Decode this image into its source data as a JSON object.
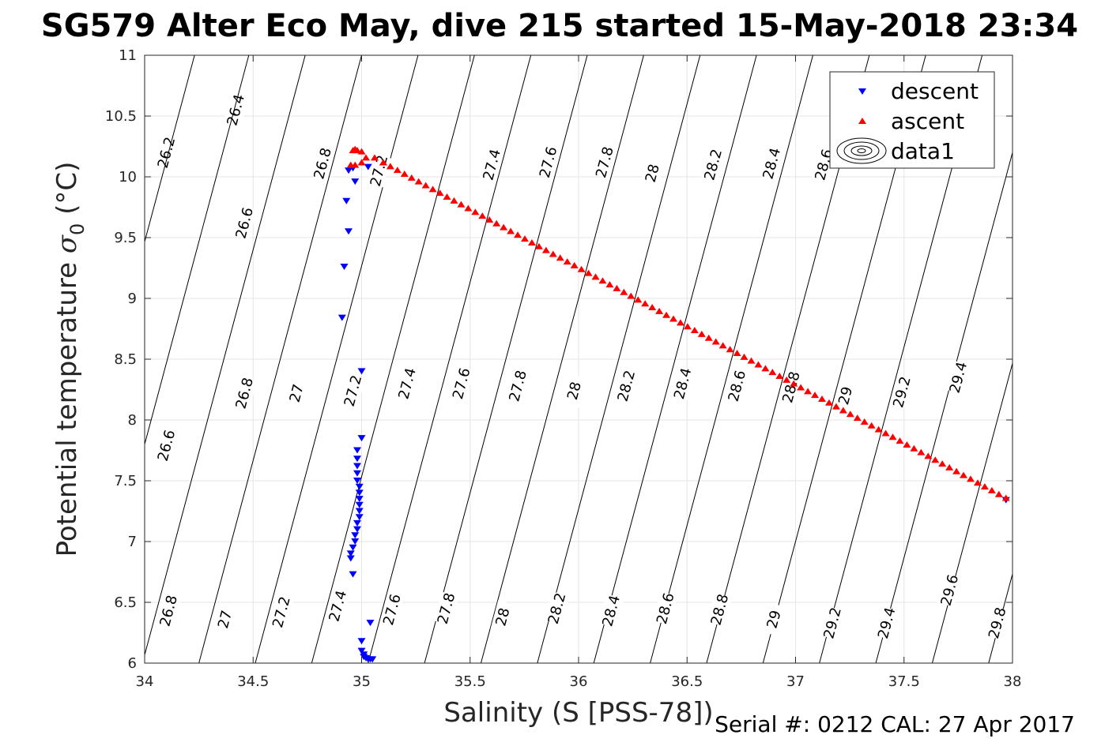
{
  "chart_data": {
    "type": "scatter",
    "title": "SG579 Alter Eco May, dive 215 started 15-May-2018 23:34",
    "xlabel": "Salinity (S [PSS-78])",
    "ylabel_main": "Potential temperature ",
    "ylabel_symbol": "σ",
    "ylabel_subscript": "0",
    "ylabel_unit": " (°C)",
    "xlim": [
      34,
      38
    ],
    "ylim": [
      6,
      11
    ],
    "xticks": [
      "34",
      "34.5",
      "35",
      "35.5",
      "36",
      "36.5",
      "37",
      "37.5",
      "38"
    ],
    "yticks": [
      "6",
      "6.5",
      "7",
      "7.5",
      "8",
      "8.5",
      "9",
      "9.5",
      "10",
      "10.5",
      "11"
    ],
    "grid": true,
    "legend_position": "top-right",
    "legend": [
      "descent",
      "ascent",
      "data1"
    ],
    "footer": "Serial #: 0212  CAL: 27 Apr 2017",
    "colors": {
      "descent": "#0000ff",
      "ascent": "#ff0000",
      "contour": "#000000",
      "grid": "#e6e6e6"
    },
    "series": [
      {
        "name": "descent",
        "marker": "triangle-down",
        "points": [
          [
            34.94,
            10.05
          ],
          [
            34.96,
            10.07
          ],
          [
            35.03,
            10.08
          ],
          [
            34.97,
            9.96
          ],
          [
            34.93,
            9.8
          ],
          [
            34.94,
            9.55
          ],
          [
            34.92,
            9.26
          ],
          [
            34.91,
            8.84
          ],
          [
            35.0,
            8.4
          ],
          [
            35.0,
            7.85
          ],
          [
            34.98,
            7.75
          ],
          [
            34.98,
            7.68
          ],
          [
            34.98,
            7.62
          ],
          [
            34.98,
            7.56
          ],
          [
            34.98,
            7.5
          ],
          [
            34.99,
            7.45
          ],
          [
            34.99,
            7.4
          ],
          [
            34.99,
            7.35
          ],
          [
            34.99,
            7.3
          ],
          [
            34.99,
            7.25
          ],
          [
            34.99,
            7.2
          ],
          [
            34.98,
            7.15
          ],
          [
            34.98,
            7.1
          ],
          [
            34.97,
            7.05
          ],
          [
            34.97,
            7.0
          ],
          [
            34.96,
            6.95
          ],
          [
            34.95,
            6.9
          ],
          [
            34.95,
            6.86
          ],
          [
            34.96,
            6.73
          ],
          [
            35.04,
            6.33
          ],
          [
            35.0,
            6.18
          ],
          [
            35.0,
            6.1
          ],
          [
            35.01,
            6.07
          ],
          [
            35.01,
            6.05
          ],
          [
            35.02,
            6.04
          ],
          [
            35.03,
            6.03
          ],
          [
            35.04,
            6.03
          ],
          [
            35.05,
            6.03
          ],
          [
            37.97,
            7.34
          ]
        ]
      },
      {
        "name": "ascent",
        "marker": "triangle-up",
        "points": [
          [
            34.95,
            10.1
          ],
          [
            34.96,
            10.22
          ],
          [
            34.97,
            10.23
          ],
          [
            34.98,
            10.22
          ],
          [
            35.0,
            10.21
          ],
          [
            34.97,
            10.1
          ],
          [
            35.0,
            10.12
          ],
          [
            35.02,
            10.16
          ],
          [
            35.06,
            10.16
          ],
          [
            35.1,
            10.12
          ]
        ],
        "line_segment": {
          "from": [
            35.1,
            10.12
          ],
          "to": [
            37.97,
            7.36
          ],
          "count": 88
        }
      }
    ],
    "contours": [
      {
        "sigma": 26.2,
        "s_at_t6": 33.22,
        "dsdt": 0.15,
        "labels": [
          {
            "s": 34.1,
            "t": 10.2
          }
        ]
      },
      {
        "sigma": 26.4,
        "s_at_t6": 33.48,
        "dsdt": 0.15,
        "labels": [
          {
            "s": 34.42,
            "t": 10.55
          }
        ]
      },
      {
        "sigma": 26.6,
        "s_at_t6": 33.73,
        "dsdt": 0.15,
        "labels": [
          {
            "s": 34.46,
            "t": 9.62
          },
          {
            "s": 34.1,
            "t": 7.79
          }
        ]
      },
      {
        "sigma": 26.8,
        "s_at_t6": 33.99,
        "dsdt": 0.15,
        "labels": [
          {
            "s": 34.11,
            "t": 6.43
          },
          {
            "s": 34.46,
            "t": 8.22
          },
          {
            "s": 34.82,
            "t": 10.11
          }
        ]
      },
      {
        "sigma": 27.0,
        "s_at_t6": 34.25,
        "dsdt": 0.15,
        "labels": [
          {
            "s": 34.37,
            "t": 6.36
          },
          {
            "s": 34.7,
            "t": 8.22
          }
        ]
      },
      {
        "sigma": 27.2,
        "s_at_t6": 34.51,
        "dsdt": 0.15,
        "labels": [
          {
            "s": 34.63,
            "t": 6.42
          },
          {
            "s": 34.96,
            "t": 8.24
          },
          {
            "s": 35.08,
            "t": 10.05
          }
        ]
      },
      {
        "sigma": 27.4,
        "s_at_t6": 34.77,
        "dsdt": 0.15,
        "labels": [
          {
            "s": 34.89,
            "t": 6.47
          },
          {
            "s": 35.21,
            "t": 8.3
          },
          {
            "s": 35.6,
            "t": 10.1
          }
        ]
      },
      {
        "sigma": 27.6,
        "s_at_t6": 35.03,
        "dsdt": 0.15,
        "labels": [
          {
            "s": 35.14,
            "t": 6.44
          },
          {
            "s": 35.46,
            "t": 8.3
          },
          {
            "s": 35.86,
            "t": 10.12
          }
        ]
      },
      {
        "sigma": 27.8,
        "s_at_t6": 35.29,
        "dsdt": 0.15,
        "labels": [
          {
            "s": 35.39,
            "t": 6.45
          },
          {
            "s": 35.72,
            "t": 8.28
          },
          {
            "s": 36.12,
            "t": 10.12
          }
        ]
      },
      {
        "sigma": 28.0,
        "s_at_t6": 35.55,
        "dsdt": 0.15,
        "labels": [
          {
            "s": 35.65,
            "t": 6.38
          },
          {
            "s": 35.98,
            "t": 8.24
          },
          {
            "s": 36.34,
            "t": 10.03
          }
        ]
      },
      {
        "sigma": 28.2,
        "s_at_t6": 35.81,
        "dsdt": 0.15,
        "labels": [
          {
            "s": 35.9,
            "t": 6.45
          },
          {
            "s": 36.22,
            "t": 8.28
          },
          {
            "s": 36.62,
            "t": 10.1
          }
        ]
      },
      {
        "sigma": 28.4,
        "s_at_t6": 36.07,
        "dsdt": 0.15,
        "labels": [
          {
            "s": 36.15,
            "t": 6.43
          },
          {
            "s": 36.48,
            "t": 8.3
          },
          {
            "s": 36.89,
            "t": 10.11
          }
        ]
      },
      {
        "sigma": 28.6,
        "s_at_t6": 36.33,
        "dsdt": 0.15,
        "labels": [
          {
            "s": 36.4,
            "t": 6.45
          },
          {
            "s": 36.73,
            "t": 8.28
          },
          {
            "s": 37.13,
            "t": 10.1
          }
        ]
      },
      {
        "sigma": 28.8,
        "s_at_t6": 36.59,
        "dsdt": 0.15,
        "labels": [
          {
            "s": 36.65,
            "t": 6.44
          },
          {
            "s": 36.98,
            "t": 8.27
          }
        ]
      },
      {
        "sigma": 29.0,
        "s_at_t6": 36.85,
        "dsdt": 0.15,
        "labels": [
          {
            "s": 36.9,
            "t": 6.36
          },
          {
            "s": 37.23,
            "t": 8.2
          }
        ]
      },
      {
        "sigma": 29.2,
        "s_at_t6": 37.11,
        "dsdt": 0.15,
        "labels": [
          {
            "s": 37.17,
            "t": 6.33
          },
          {
            "s": 37.49,
            "t": 8.23
          }
        ]
      },
      {
        "sigma": 29.4,
        "s_at_t6": 37.37,
        "dsdt": 0.15,
        "labels": [
          {
            "s": 37.42,
            "t": 6.33
          },
          {
            "s": 37.75,
            "t": 8.35
          }
        ]
      },
      {
        "sigma": 29.6,
        "s_at_t6": 37.63,
        "dsdt": 0.15,
        "labels": [
          {
            "s": 37.71,
            "t": 6.6
          }
        ]
      },
      {
        "sigma": 29.8,
        "s_at_t6": 37.89,
        "dsdt": 0.15,
        "labels": [
          {
            "s": 37.93,
            "t": 6.33
          }
        ]
      }
    ]
  }
}
